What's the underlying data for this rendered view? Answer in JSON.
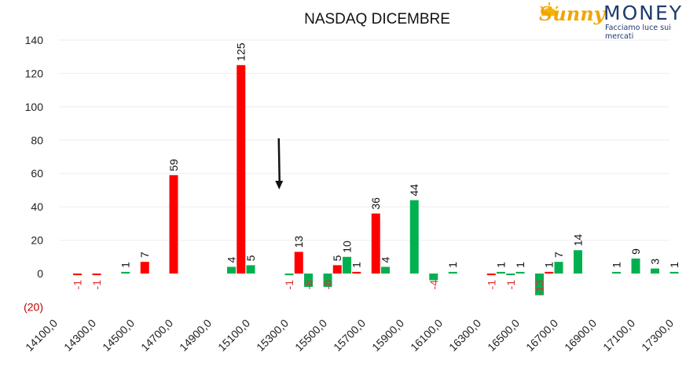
{
  "logo": {
    "brand_left": "Sunny",
    "brand_right": "MONEY",
    "tagline": "Facciamo luce sui mercati"
  },
  "chart_data": {
    "type": "bar",
    "title": "NASDAQ DICEMBRE",
    "xlabel": "",
    "ylabel": "",
    "ylim": [
      -20,
      140
    ],
    "yticks": [
      140,
      120,
      100,
      80,
      60,
      40,
      20,
      0,
      -20
    ],
    "ytick_labels": [
      "140",
      "120",
      "100",
      "80",
      "60",
      "40",
      "20",
      "0",
      "(20)"
    ],
    "x_tick_labels": [
      "14100,0",
      "14300,0",
      "14500,0",
      "14700,0",
      "14900,0",
      "15100,0",
      "15300,0",
      "15500,0",
      "15700,0",
      "15900,0",
      "16100,0",
      "16300,0",
      "16500,0",
      "16700,0",
      "16900,0",
      "17100,0",
      "17300,0"
    ],
    "grid": true,
    "colors": {
      "red": "#ff0000",
      "green": "#00b050",
      "negative_label": "#e03030",
      "grid": "#eeeeee"
    },
    "annotation": "downward arrow above 15300",
    "bars": [
      {
        "strike": 14200,
        "value": -1,
        "color": "red"
      },
      {
        "strike": 14300,
        "value": -1,
        "color": "red"
      },
      {
        "strike": 14450,
        "value": 1,
        "color": "green"
      },
      {
        "strike": 14550,
        "value": 7,
        "color": "red"
      },
      {
        "strike": 14700,
        "value": 59,
        "color": "red"
      },
      {
        "strike": 15000,
        "value": 4,
        "color": "green"
      },
      {
        "strike": 15050,
        "value": 125,
        "color": "red"
      },
      {
        "strike": 15100,
        "value": 5,
        "color": "green"
      },
      {
        "strike": 15300,
        "value": -1,
        "color": "green"
      },
      {
        "strike": 15350,
        "value": 13,
        "color": "red"
      },
      {
        "strike": 15400,
        "value": -8,
        "color": "green"
      },
      {
        "strike": 15500,
        "value": -8,
        "color": "green"
      },
      {
        "strike": 15550,
        "value": 5,
        "color": "red"
      },
      {
        "strike": 15600,
        "value": 10,
        "color": "green"
      },
      {
        "strike": 15650,
        "value": 1,
        "color": "red"
      },
      {
        "strike": 15750,
        "value": 36,
        "color": "red"
      },
      {
        "strike": 15800,
        "value": 4,
        "color": "green"
      },
      {
        "strike": 15950,
        "value": 44,
        "color": "green"
      },
      {
        "strike": 16050,
        "value": -4,
        "color": "green"
      },
      {
        "strike": 16150,
        "value": 1,
        "color": "green"
      },
      {
        "strike": 16350,
        "value": -1,
        "color": "red"
      },
      {
        "strike": 16400,
        "value": 1,
        "color": "green"
      },
      {
        "strike": 16450,
        "value": -1,
        "color": "green"
      },
      {
        "strike": 16500,
        "value": 1,
        "color": "green"
      },
      {
        "strike": 16600,
        "value": -13,
        "color": "green"
      },
      {
        "strike": 16650,
        "value": 1,
        "color": "red"
      },
      {
        "strike": 16700,
        "value": 7,
        "color": "green"
      },
      {
        "strike": 16800,
        "value": 14,
        "color": "green"
      },
      {
        "strike": 17000,
        "value": 1,
        "color": "green"
      },
      {
        "strike": 17100,
        "value": 9,
        "color": "green"
      },
      {
        "strike": 17200,
        "value": 3,
        "color": "green"
      },
      {
        "strike": 17300,
        "value": 1,
        "color": "green"
      }
    ]
  }
}
